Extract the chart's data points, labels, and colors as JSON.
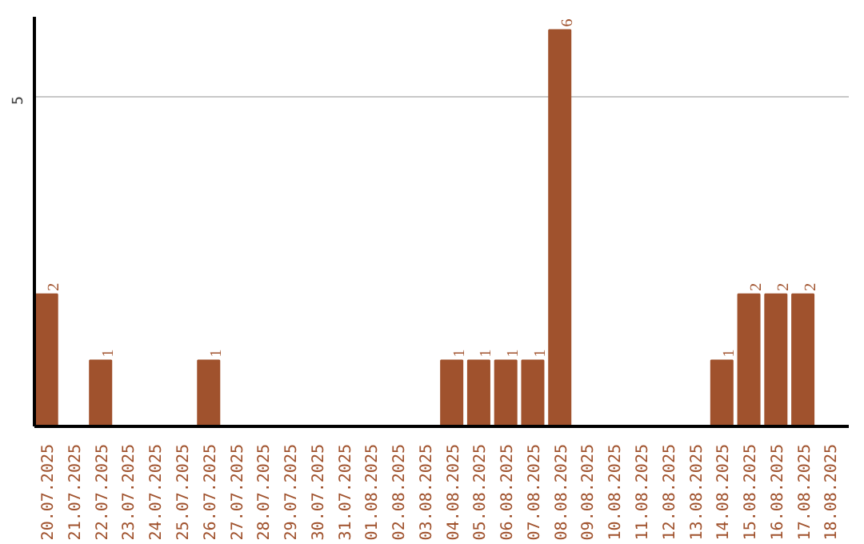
{
  "chart_data": {
    "type": "bar",
    "categories": [
      "20.07.2025",
      "21.07.2025",
      "22.07.2025",
      "23.07.2025",
      "24.07.2025",
      "25.07.2025",
      "26.07.2025",
      "27.07.2025",
      "28.07.2025",
      "29.07.2025",
      "30.07.2025",
      "31.07.2025",
      "01.08.2025",
      "02.08.2025",
      "03.08.2025",
      "04.08.2025",
      "05.08.2025",
      "06.08.2025",
      "07.08.2025",
      "08.08.2025",
      "09.08.2025",
      "10.08.2025",
      "11.08.2025",
      "12.08.2025",
      "13.08.2025",
      "14.08.2025",
      "15.08.2025",
      "16.08.2025",
      "17.08.2025",
      "18.08.2025"
    ],
    "values": [
      2,
      0,
      1,
      0,
      0,
      0,
      1,
      0,
      0,
      0,
      0,
      0,
      0,
      0,
      0,
      1,
      1,
      1,
      1,
      6,
      0,
      0,
      0,
      0,
      0,
      1,
      2,
      2,
      2,
      0
    ],
    "value_labels": [
      "2",
      null,
      "1",
      null,
      null,
      null,
      "1",
      null,
      null,
      null,
      null,
      null,
      null,
      null,
      null,
      "1",
      "1",
      "1",
      "1",
      "6",
      null,
      null,
      null,
      null,
      null,
      "1",
      "2",
      "2",
      "2",
      null
    ],
    "color": "#a0522d",
    "ylim": [
      0,
      6.2
    ],
    "yticks": [
      5
    ],
    "grid": "y"
  }
}
